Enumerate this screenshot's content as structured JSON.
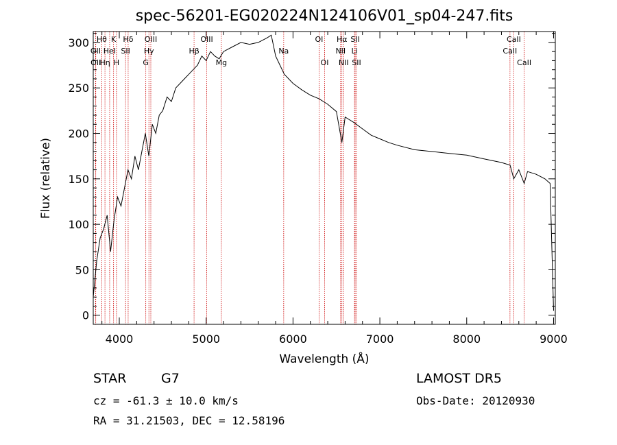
{
  "chart_data": {
    "type": "line",
    "title": "spec-56201-EG020224N124106V01_sp04-247.fits",
    "xlabel": "Wavelength (Å)",
    "ylabel": "Flux (relative)",
    "xlim": [
      3700,
      9020
    ],
    "ylim": [
      -10,
      312
    ],
    "x_ticks": [
      4000,
      5000,
      6000,
      7000,
      8000,
      9000
    ],
    "y_ticks": [
      0,
      50,
      100,
      150,
      200,
      250,
      300
    ],
    "grid": false,
    "line_color": "#000000",
    "marker_line_color": "#cc0000",
    "series": [
      {
        "x": [
          3700,
          3740,
          3780,
          3820,
          3860,
          3900,
          3940,
          3980,
          4020,
          4060,
          4100,
          4140,
          4180,
          4220,
          4260,
          4300,
          4340,
          4380,
          4420,
          4460,
          4500,
          4550,
          4600,
          4650,
          4700,
          4750,
          4800,
          4850,
          4900,
          4950,
          5000,
          5050,
          5100,
          5150,
          5200,
          5300,
          5400,
          5500,
          5600,
          5700,
          5750,
          5800,
          5850,
          5900,
          6000,
          6100,
          6200,
          6300,
          6400,
          6500,
          6563,
          6600,
          6700,
          6800,
          6900,
          7000,
          7100,
          7200,
          7400,
          7600,
          7800,
          8000,
          8200,
          8400,
          8500,
          8542,
          8600,
          8662,
          8700,
          8800,
          8900,
          8960,
          9000
        ],
        "y": [
          20,
          60,
          85,
          95,
          110,
          70,
          105,
          130,
          120,
          140,
          160,
          150,
          175,
          160,
          180,
          200,
          175,
          210,
          200,
          220,
          225,
          240,
          235,
          250,
          255,
          260,
          265,
          270,
          275,
          285,
          280,
          290,
          285,
          282,
          290,
          295,
          300,
          298,
          300,
          305,
          308,
          285,
          275,
          265,
          255,
          248,
          242,
          238,
          232,
          224,
          190,
          218,
          212,
          205,
          198,
          194,
          190,
          187,
          182,
          180,
          178,
          176,
          172,
          168,
          165,
          150,
          160,
          145,
          158,
          155,
          150,
          145,
          5
        ]
      }
    ],
    "spectral_lines": [
      {
        "label": "Hθ",
        "x": 3798,
        "row": 0
      },
      {
        "label": "OII",
        "x": 3727,
        "row": 1
      },
      {
        "label": "OII",
        "x": 3729,
        "row": 2
      },
      {
        "label": "HeI",
        "x": 3889,
        "row": 1
      },
      {
        "label": "Hη",
        "x": 3835,
        "row": 2
      },
      {
        "label": "K",
        "x": 3934,
        "row": 0
      },
      {
        "label": "H",
        "x": 3968,
        "row": 2
      },
      {
        "label": "SII",
        "x": 4072,
        "row": 1
      },
      {
        "label": "Hδ",
        "x": 4102,
        "row": 0
      },
      {
        "label": "OIII",
        "x": 4363,
        "row": 0
      },
      {
        "label": "Hγ",
        "x": 4341,
        "row": 1
      },
      {
        "label": "G",
        "x": 4305,
        "row": 2
      },
      {
        "label": "OIII",
        "x": 5007,
        "row": 0
      },
      {
        "label": "Hβ",
        "x": 4861,
        "row": 1
      },
      {
        "label": "Mg",
        "x": 5175,
        "row": 2
      },
      {
        "label": "Na",
        "x": 5893,
        "row": 1
      },
      {
        "label": "OI",
        "x": 6300,
        "row": 0
      },
      {
        "label": "OI",
        "x": 6364,
        "row": 2
      },
      {
        "label": "Hα",
        "x": 6563,
        "row": 0
      },
      {
        "label": "NII",
        "x": 6548,
        "row": 1
      },
      {
        "label": "NII",
        "x": 6583,
        "row": 2
      },
      {
        "label": "SII",
        "x": 6716,
        "row": 0
      },
      {
        "label": "Li",
        "x": 6708,
        "row": 1
      },
      {
        "label": "SII",
        "x": 6731,
        "row": 2
      },
      {
        "label": "CaII",
        "x": 8542,
        "row": 0
      },
      {
        "label": "CaII",
        "x": 8498,
        "row": 1
      },
      {
        "label": "CaII",
        "x": 8662,
        "row": 2
      }
    ]
  },
  "info": {
    "object_type": "STAR",
    "subclass": "G7",
    "survey": "LAMOST DR5",
    "cz": "cz = -61.3 ± 10.0 km/s",
    "obs_date": "Obs-Date: 20120930",
    "coords": "RA =  31.21503, DEC =  12.58196"
  }
}
